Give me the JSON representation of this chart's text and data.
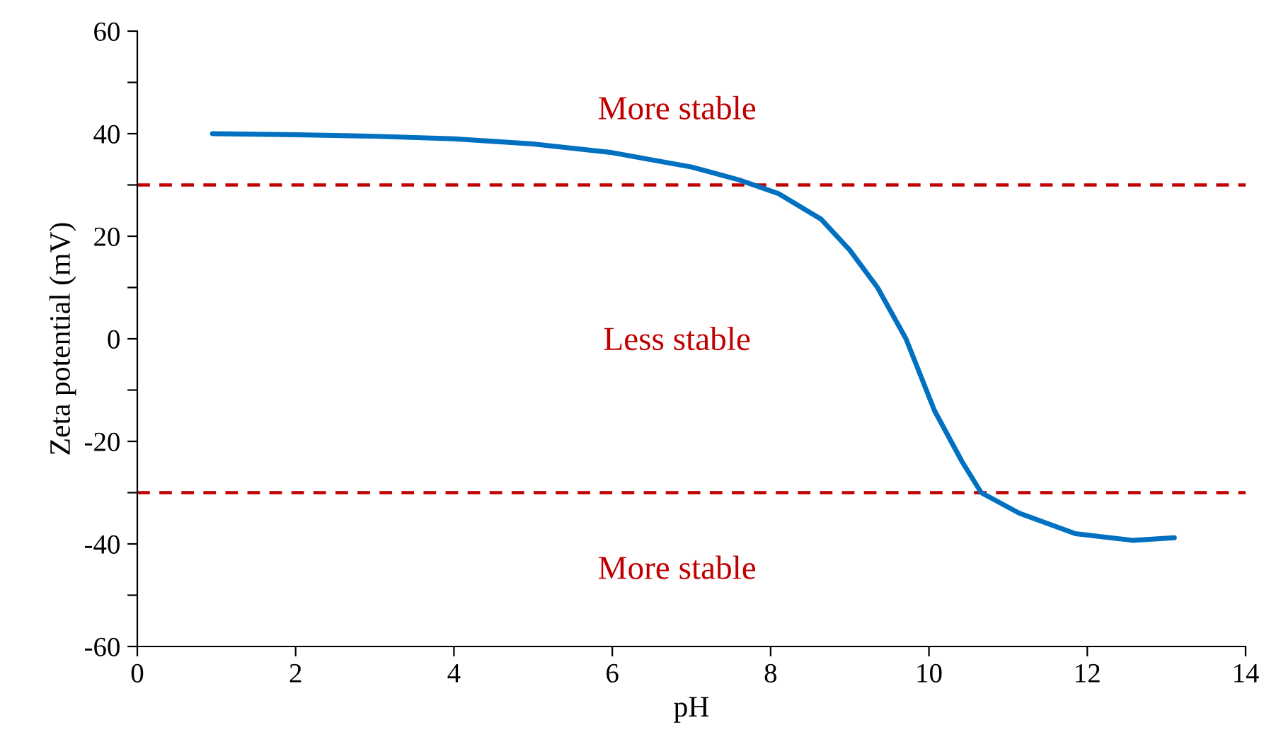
{
  "chart_data": {
    "type": "line",
    "xlabel": "pH",
    "ylabel": "Zeta potential (mV)",
    "xlim": [
      0,
      14
    ],
    "xticks": [
      0,
      2,
      4,
      6,
      8,
      10,
      12,
      14
    ],
    "ylim": [
      -60,
      60
    ],
    "yticks": [
      -60,
      {
        "value": -50,
        "label": null
      },
      -40,
      {
        "value": -30,
        "label": null
      },
      -20,
      {
        "value": -10,
        "label": null
      },
      0,
      {
        "value": 10,
        "label": null
      },
      20,
      {
        "value": 30,
        "label": null
      },
      40,
      {
        "value": 50,
        "label": null
      },
      60
    ],
    "grid": false,
    "legend": false,
    "marker": "none",
    "line_style": "solid",
    "series": [
      {
        "color": "#0070c0",
        "x": [
          0.95,
          2,
          3,
          4,
          5,
          6,
          7,
          7.6,
          8.1,
          8.64,
          9.0,
          9.35,
          9.71,
          10.07,
          10.42,
          10.66,
          11.14,
          11.85,
          12.57,
          13.1
        ],
        "values": [
          40,
          39.8,
          39.5,
          39,
          38,
          36.3,
          33.5,
          31,
          28.3,
          23.3,
          17.3,
          10,
          0,
          -14,
          -24,
          -30,
          -34,
          -38,
          -39.3,
          -38.8
        ]
      }
    ],
    "ref_lines": [
      {
        "axis": "y",
        "value": 30,
        "color": "#c00000",
        "line_style": "dashed"
      },
      {
        "axis": "y",
        "value": -30,
        "color": "#c00000",
        "line_style": "dashed"
      }
    ],
    "annotations": [
      "More stable",
      "Less stable",
      "More stable"
    ]
  }
}
